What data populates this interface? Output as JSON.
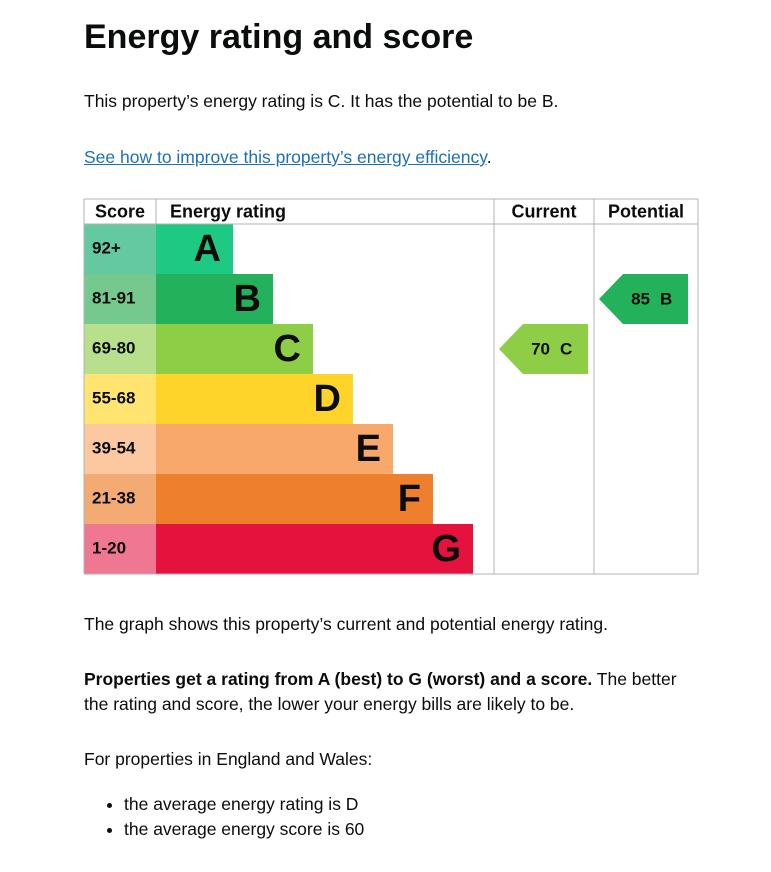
{
  "header": {
    "title": "Energy rating and score"
  },
  "intro": "This property’s energy rating is C. It has the potential to be B.",
  "link": {
    "text": "See how to improve this property’s energy efficiency",
    "after": "."
  },
  "table": {
    "headers": [
      "Score",
      "Energy rating",
      "Current",
      "Potential"
    ],
    "bands": [
      {
        "score": "92+",
        "letter": "A",
        "color": "#1dc983",
        "light": "#64c8a0"
      },
      {
        "score": "81-91",
        "letter": "B",
        "color": "#23b25b",
        "light": "#76c98e"
      },
      {
        "score": "69-80",
        "letter": "C",
        "color": "#8dce46",
        "light": "#b7df8c"
      },
      {
        "score": "55-68",
        "letter": "D",
        "color": "#ffd42a",
        "light": "#ffe46f"
      },
      {
        "score": "39-54",
        "letter": "E",
        "color": "#f8a86a",
        "light": "#fbc8a0"
      },
      {
        "score": "21-38",
        "letter": "F",
        "color": "#ee7f2d",
        "light": "#f3ab73"
      },
      {
        "score": "1-20",
        "letter": "G",
        "color": "#e6123e",
        "light": "#f07791"
      }
    ],
    "current": {
      "score": 70,
      "letter": "C"
    },
    "potential": {
      "score": 85,
      "letter": "B"
    }
  },
  "graph_note": "The graph shows this property’s current and potential energy rating.",
  "rating_para": {
    "bold": "Properties get a rating from A (best) to G (worst) and a score.",
    "rest": " The better the rating and score, the lower your energy bills are likely to be."
  },
  "region_intro": "For properties in England and Wales:",
  "averages": [
    "the average energy rating is D",
    "the average energy score is 60"
  ]
}
